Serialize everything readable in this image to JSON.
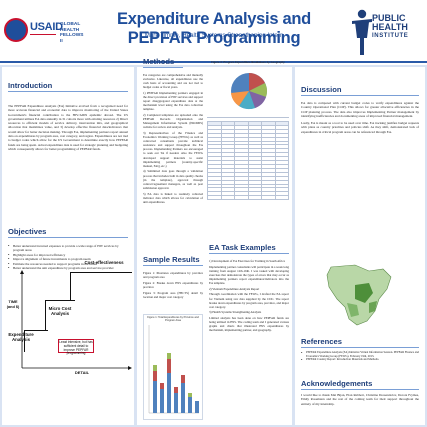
{
  "header": {
    "usaid": "USAID",
    "ghf_lines": [
      "GLOBAL HEALTH",
      "FELLOWS II"
    ],
    "title": "Expenditure Analysis and PEPFAR Programming",
    "subtitle": "Mark Timme, Health Systems Strengthening Intern",
    "phi_lines": [
      "PUBLIC",
      "HEALTH",
      "INSTITUTE"
    ]
  },
  "intro": {
    "title": "Introduction",
    "text": "The PEPFAR Expenditure Analysis (EA) Initiative evolved from a recognized need for more accurate financial and economic data to improve monitoring of the United States Government's financial contribution to the HIV/AIDS epidemic abroad. The US government utilizes EA data annually in 31 cohorts more with existing resources 2) Direct resources to efficient models of service delivery, intervention mix, and geographical allocation that maximizes value, and 3) develop effective financial data/indicators that would allow for better decision making. Through EA, implementing partners report annual data on expenditures by program area, cost category, and region. Expenditures are not tied to budget codes which allow for the US Government to determine exactly how PEPFAR funds are being spent. Actual expenditure data is used for strategic planning and budgeting which consequently allows for better programming of PEPFAR funds."
  },
  "objectives": {
    "title": "Objectives",
    "items": [
      "Better understand incurred expenses to provide a wide range of HIV services by program areas",
      "Highlight areas for improved efficiency",
      "Improve alignment of future investments to program needs",
      "Estimate the resources needed to support programs in the future",
      "Better understand the unit expenditure by program area and service provider"
    ]
  },
  "diagram": {
    "top_label": "Cost-effectiveness",
    "mid_label": "Micro Cost Analysis",
    "low_label": "Expenditure Analysis",
    "y_axis": "TIME (and $)",
    "x_axis": "DETAIL",
    "callout": "Least intensive, but has sufficient detail to improve PEPFAR programming"
  },
  "methods": {
    "title": "Methods",
    "intro": "EA categories are comprehensive and mutually exclusive. Likewise, all expenditures use the cash basis of accounting and are not tied to budget codes or fiscal years.",
    "steps": [
      "1) PEPFAR Implementing partners engaged in the direct provision of HIV services and support report disaggregated expenditure data at the mechanism level using the EA data collection template.",
      "2) Completed templates are uploaded onto the PEPFAR Records Organization and Management Information System (PROMIS) website for review and analysis.",
      "3) Representatives of the Finance and Economics Working Group (FEWG) as well as contracted consultants provide technical assistance and support throughout the EA process. Implementing Partners are encouraged to seek out TA if needed. Also the FEWG developed support materials to assist implementing partners (country-specific manual, FAQ, etc.)",
      "4) Submitted data goes through a validation process that includes built in data quality checks (in the template), approval through contract/agreement managers, as well as post submission approval.",
      "5) EA data is linked to routinely collected indicator data which allows for calculation of unit expenditures."
    ]
  },
  "figure3": {
    "caption": "Figure 3: Program Expenditure Breakdown by Geography"
  },
  "sample_results": {
    "title": "Sample Results",
    "captions": [
      "Figure 1: Illustrates expenditures by province and program area",
      "Figure 2: Breaks down HSS expenditures by province",
      "Figure 3: Program area (FBCTS) detail by location and major cost category"
    ]
  },
  "figure1": {
    "caption": "Figure 1: Total Expenditures by Province and Program Area"
  },
  "ea_tasks": {
    "title": "EA Task Examples",
    "items": [
      "1) Development of EA Exercises for Training in South Africa",
      "Implementing partner consultants will participate in a week long training from August 12th-16th. I was tasked with developing exercises that demonstrate the types of errors that may occur as implementing partners report expenditures/indicators into the EA template.",
      "2) Vietnam Expenditure Analysis Report",
      "Through coordination with the FEWG, I drafted the EA report for Vietnam using raw data supplied by the CDC. The report breaks down expenditures by program area, province, and major cost category.",
      "3) Health Systems Strengthening Analysis",
      "Limited analysis has been done on how PEPFAR funds are being utilized in HSS. The coding team and I generated various graphs and charts that illustrated HSS expenditures by mechanism, implementing partner, and geography."
    ]
  },
  "discussion": {
    "title": "Discussion",
    "text1": "EA data is compared with current budget codes to verify expenditures against the Country Operational Plan (COP). This allows for greater allocative efficiencies in the COP planning process. The data also improves Implementing Partner management by identifying inefficiencies and documenting areas of improved financial management.",
    "text2": "Lastly, EA is meant as a tool to be used over time. EA tracking justifies budget requests with plans as country priorities and policies shift. As they shift, demonstrated lack of expenditures in critical program areas can be referenced through EA."
  },
  "references": {
    "title": "References",
    "items": [
      "PEPFAR Expenditure Analysis (EA) Initiative Virtual Information Session. PEPFAR Finance and Economics Working Group (FEWG). February 19th, 2013.",
      "PEPFAR Country Report: Introduction Materials and Methods."
    ]
  },
  "acknowledgements": {
    "title": "Acknowledgements",
    "text": "I would like to thank Mai Bijan, Elan Rebbert, Christina Dossendolov, Dorota Frymas, Emily Rosemann and the rest of the coming team for their support throughout the entirety of my internship."
  },
  "colors": {
    "brand_blue": "#1f4e9b",
    "navy": "#1f3f7a",
    "accent_red": "#c8102e",
    "panel_bg": "#d9e3f3"
  }
}
